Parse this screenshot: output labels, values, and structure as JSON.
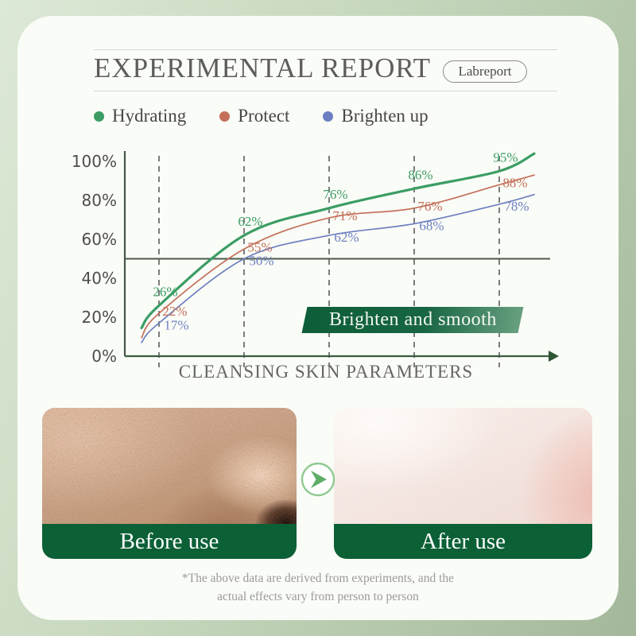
{
  "header": {
    "title": "EXPERIMENTAL REPORT",
    "badge_label": "Labreport"
  },
  "legend": [
    {
      "label": "Hydrating",
      "color": "#3b9d64"
    },
    {
      "label": "Protect",
      "color": "#c4705a"
    },
    {
      "label": "Brighten up",
      "color": "#6d7fc1"
    }
  ],
  "chart_data": {
    "type": "line",
    "title": "",
    "xlabel": "CLEANSING SKIN PARAMETERS",
    "ylabel": "",
    "ylim": [
      0,
      100
    ],
    "y_ticks": [
      "0%",
      "20%",
      "40%",
      "60%",
      "80%",
      "100%"
    ],
    "x_gridline_count": 5,
    "grid": "dashed-vertical",
    "reference_line": 50,
    "legend_position": "top",
    "annotation_banner": "Brighten and smooth",
    "series": [
      {
        "name": "Hydrating",
        "color": "#3b9d64",
        "line_width": 3.2,
        "values": [
          26,
          62,
          76,
          86,
          95
        ],
        "start_value": 14.5,
        "end_value": 104
      },
      {
        "name": "Protect",
        "color": "#c4705a",
        "line_width": 1.7,
        "values": [
          22,
          55,
          71,
          76,
          88
        ],
        "start_value": 9.5,
        "end_value": 93
      },
      {
        "name": "Brighten up",
        "color": "#6d7fc1",
        "line_width": 1.7,
        "values": [
          17,
          50,
          62,
          68,
          78
        ],
        "start_value": 7,
        "end_value": 83
      }
    ]
  },
  "comparison": {
    "before_label": "Before use",
    "after_label": "After use"
  },
  "disclaimer": {
    "line1": "*The above data are derived from experiments, and the",
    "line2": "actual effects vary from person to person"
  },
  "colors": {
    "accent_green": "#0c6036"
  }
}
